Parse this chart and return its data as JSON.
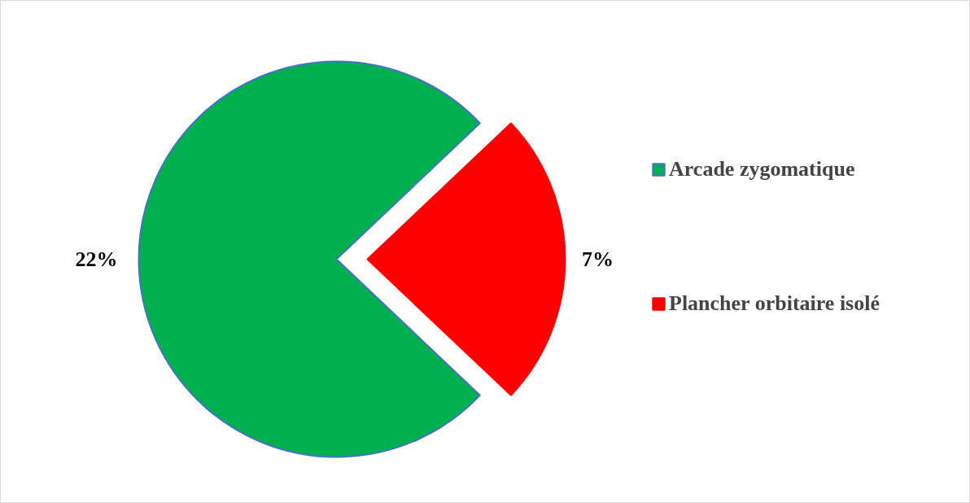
{
  "chart_data": {
    "type": "pie",
    "categories": [
      "Arcade zygomatique",
      "Plancher orbitaire isolé"
    ],
    "values": [
      22,
      7
    ],
    "colors": [
      "#00b050",
      "#ff0000"
    ],
    "value_labels": [
      "22%",
      "7%"
    ],
    "legend": "right"
  }
}
